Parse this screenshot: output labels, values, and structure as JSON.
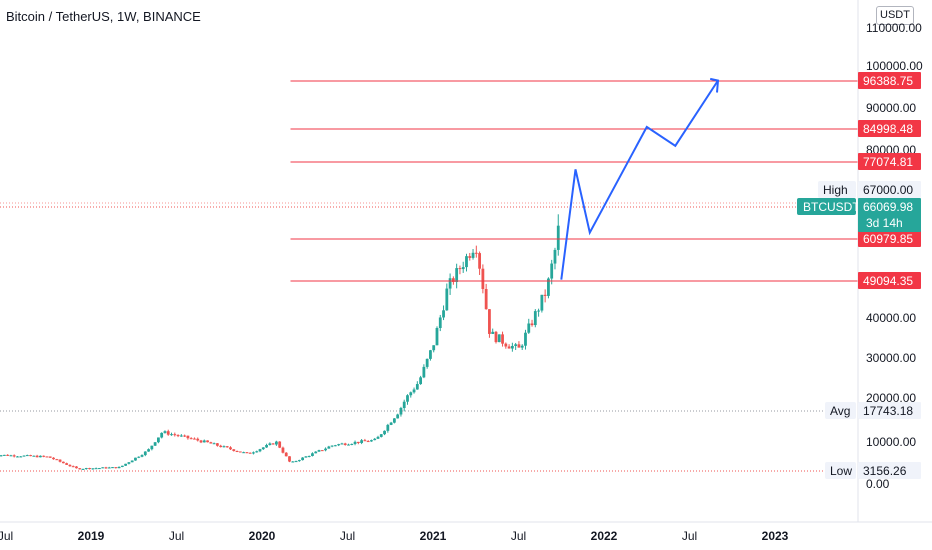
{
  "header": {
    "title": "Bitcoin / TetherUS, 1W, BINANCE",
    "currency": "USDT"
  },
  "chart_data": {
    "type": "candlestick",
    "x_axis": {
      "labels": [
        "Jul",
        "2019",
        "Jul",
        "2020",
        "Jul",
        "2021",
        "Jul",
        "2022",
        "Jul",
        "2023"
      ],
      "dates": [
        "2018-07",
        "2019-01",
        "2019-07",
        "2020-01",
        "2020-07",
        "2021-01",
        "2021-07",
        "2022-01",
        "2022-07",
        "2023-01"
      ],
      "bold": [
        false,
        true,
        false,
        true,
        false,
        true,
        false,
        true,
        false,
        true
      ]
    },
    "y_axis": {
      "scale": "log-like (uneven spacing)",
      "ticks": [
        0,
        10000,
        20000,
        30000,
        40000,
        67000,
        80000,
        90000,
        100000,
        110000
      ],
      "tick_labels": [
        "0.00",
        "10000.00",
        "20000.00",
        "30000.00",
        "40000.00",
        "67000.00",
        "80000.00",
        "90000.00",
        "100000.00",
        "110000.00"
      ]
    },
    "price_trend": [
      {
        "date": "2018-06",
        "price": 7000
      },
      {
        "date": "2018-10",
        "price": 6500
      },
      {
        "date": "2018-12",
        "price": 3700
      },
      {
        "date": "2019-03",
        "price": 4000
      },
      {
        "date": "2019-05",
        "price": 8000
      },
      {
        "date": "2019-06",
        "price": 12500
      },
      {
        "date": "2019-09",
        "price": 10000
      },
      {
        "date": "2019-12",
        "price": 7200
      },
      {
        "date": "2020-02",
        "price": 10000
      },
      {
        "date": "2020-03",
        "price": 5000
      },
      {
        "date": "2020-06",
        "price": 9300
      },
      {
        "date": "2020-09",
        "price": 10500
      },
      {
        "date": "2020-12",
        "price": 24000
      },
      {
        "date": "2021-01",
        "price": 33000
      },
      {
        "date": "2021-02",
        "price": 47000
      },
      {
        "date": "2021-04",
        "price": 60000
      },
      {
        "date": "2021-05",
        "price": 36000
      },
      {
        "date": "2021-07",
        "price": 32000
      },
      {
        "date": "2021-09",
        "price": 47000
      },
      {
        "date": "2021-10",
        "price": 66000
      }
    ],
    "projection": [
      {
        "date": "2021-10",
        "price": 49500
      },
      {
        "date": "2021-11",
        "price": 74500
      },
      {
        "date": "2021-12",
        "price": 62000
      },
      {
        "date": "2022-04",
        "price": 85500
      },
      {
        "date": "2022-06",
        "price": 81000
      },
      {
        "date": "2022-09",
        "price": 96500
      }
    ],
    "levels": [
      {
        "label": "96388.75",
        "value": 96388.75
      },
      {
        "label": "84998.48",
        "value": 84998.48
      },
      {
        "label": "77074.81",
        "value": 77074.81
      },
      {
        "label": "60979.85",
        "value": 60979.85
      },
      {
        "label": "49094.35",
        "value": 49094.35
      }
    ],
    "markers": [
      {
        "name": "High",
        "value_label": "67000.00",
        "value": 67000
      },
      {
        "name": "Avg",
        "value_label": "17743.18",
        "value": 17743.18
      },
      {
        "name": "Low",
        "value_label": "3156.26",
        "value": 3156.26
      }
    ],
    "last_price": {
      "symbol": "BTCUSDT",
      "value_label": "66069.98",
      "countdown": "3d 14h",
      "value": 66069.98
    },
    "colors": {
      "up": "#26a69a",
      "down": "#ef5350",
      "level": "#f23645",
      "projection": "#2962ff",
      "last_price": "#26a69a"
    }
  }
}
